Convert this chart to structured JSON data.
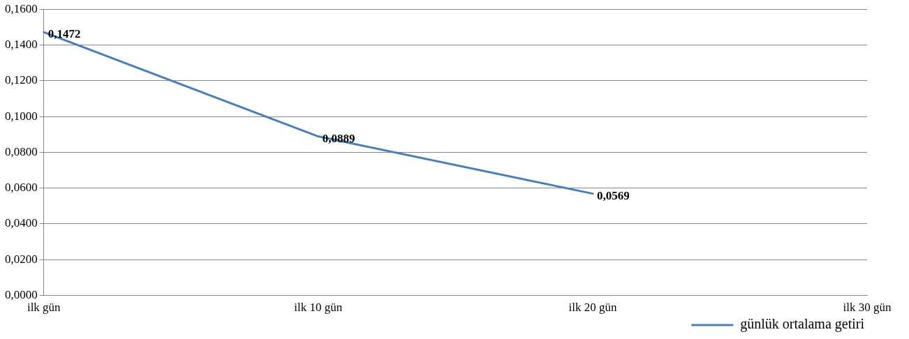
{
  "chart_data": {
    "type": "line",
    "categories": [
      "ilk gün",
      "ilk 10 gün",
      "ilk 20 gün",
      "ilk 30 gün"
    ],
    "series": [
      {
        "name": "günlük ortalama getiri",
        "color": "#4a7ebb",
        "values": [
          0.1472,
          0.0889,
          0.0569,
          null
        ],
        "value_labels": [
          "0,1472",
          "0,0889",
          "0,0569",
          null
        ]
      }
    ],
    "ylim": [
      0,
      0.16
    ],
    "yticks": [
      {
        "value": 0,
        "label": "0,0000"
      },
      {
        "value": 0.02,
        "label": "0,0200"
      },
      {
        "value": 0.04,
        "label": "0,0400"
      },
      {
        "value": 0.06,
        "label": "0,0600"
      },
      {
        "value": 0.08,
        "label": "0,0800"
      },
      {
        "value": 0.1,
        "label": "0,1000"
      },
      {
        "value": 0.12,
        "label": "0,1200"
      },
      {
        "value": 0.14,
        "label": "0,1400"
      },
      {
        "value": 0.16,
        "label": "0,1600"
      }
    ],
    "grid": "y",
    "legend": "bottom right",
    "marker": "none",
    "line_style": "solid"
  }
}
